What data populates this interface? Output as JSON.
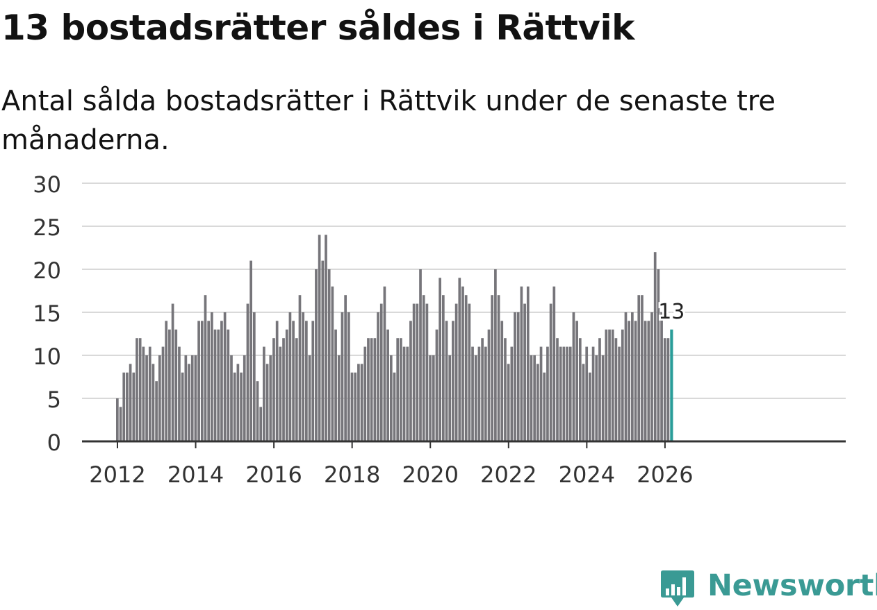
{
  "header": {
    "title": "13 bostadsrätter såldes i Rättvik",
    "subtitle": "Antal sålda bostadsrätter i Rättvik under de senaste tre månaderna."
  },
  "brand": {
    "name": "Newsworthy",
    "color": "#3a9a94",
    "icon": "newsworthy-logo-icon"
  },
  "colors": {
    "bar": "#76757a",
    "highlight": "#2a9d99",
    "grid": "#d9d9d9",
    "axis": "#333333",
    "text": "#333333"
  },
  "chart_data": {
    "type": "bar",
    "title": "13 bostadsrätter såldes i Rättvik",
    "subtitle": "Antal sålda bostadsrätter i Rättvik under de senaste tre månaderna.",
    "xlabel": "",
    "ylabel": "",
    "ylim": [
      0,
      30
    ],
    "yticks": [
      0,
      5,
      10,
      15,
      20,
      25,
      30
    ],
    "grid": true,
    "legend": "none",
    "start": "2012-01",
    "frequency": "monthly",
    "xtick_labels": [
      "2012",
      "2014",
      "2016",
      "2018",
      "2020",
      "2022",
      "2024",
      "2026"
    ],
    "highlight_label": "13",
    "values": [
      5,
      4,
      8,
      8,
      9,
      8,
      12,
      12,
      11,
      10,
      11,
      9,
      7,
      10,
      11,
      14,
      13,
      16,
      13,
      11,
      8,
      10,
      9,
      10,
      10,
      14,
      14,
      17,
      14,
      15,
      13,
      13,
      14,
      15,
      13,
      10,
      8,
      9,
      8,
      10,
      16,
      21,
      15,
      7,
      4,
      11,
      9,
      10,
      12,
      14,
      11,
      12,
      13,
      15,
      14,
      12,
      17,
      15,
      14,
      10,
      14,
      20,
      24,
      21,
      24,
      20,
      18,
      13,
      10,
      15,
      17,
      15,
      8,
      8,
      9,
      9,
      11,
      12,
      12,
      12,
      15,
      16,
      18,
      13,
      10,
      8,
      12,
      12,
      11,
      11,
      14,
      16,
      16,
      20,
      17,
      16,
      10,
      10,
      13,
      19,
      17,
      14,
      10,
      14,
      16,
      19,
      18,
      17,
      16,
      11,
      10,
      11,
      12,
      11,
      13,
      17,
      20,
      17,
      14,
      12,
      9,
      11,
      15,
      15,
      18,
      16,
      18,
      10,
      10,
      9,
      11,
      8,
      11,
      16,
      18,
      12,
      11,
      11,
      11,
      11,
      15,
      14,
      12,
      9,
      11,
      8,
      11,
      10,
      12,
      10,
      13,
      13,
      13,
      12,
      11,
      13,
      15,
      14,
      15,
      14,
      17,
      17,
      14,
      14,
      15,
      22,
      20,
      15,
      12,
      12,
      13
    ]
  }
}
